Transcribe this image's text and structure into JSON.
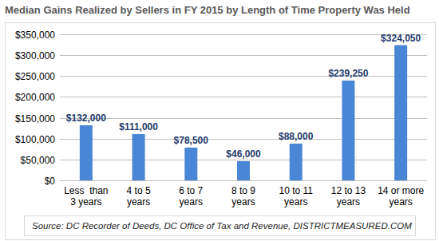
{
  "chart_data": {
    "type": "bar",
    "title": "Median Gains Realized by Sellers in FY 2015 by Length of Time Property Was Held",
    "categories": [
      "Less  than 3 years",
      "4 to 5 years",
      "6 to 7 years",
      "8 to 9 years",
      "10 to 11 years",
      "12 to 13 years",
      "14 or more years"
    ],
    "values": [
      132000,
      111000,
      78500,
      46000,
      88000,
      239250,
      324050
    ],
    "value_labels": [
      "$132,000",
      "$111,000",
      "$78,500",
      "$46,000",
      "$88,000",
      "$239,250",
      "$324,050"
    ],
    "data_labels": true,
    "color": "#4a86d6",
    "ylim": [
      0,
      350000
    ],
    "yticks": [
      {
        "value": 0,
        "label": "$0"
      },
      {
        "value": 50000,
        "label": "$50,000"
      },
      {
        "value": 100000,
        "label": "$100,000"
      },
      {
        "value": 150000,
        "label": "$150,000"
      },
      {
        "value": 200000,
        "label": "$200,000"
      },
      {
        "value": 250000,
        "label": "$250,000"
      },
      {
        "value": 300000,
        "label": "$300,000"
      },
      {
        "value": 350000,
        "label": "$350,000"
      }
    ],
    "grid": true,
    "annotations": [
      "Source: DC Recorder of Deeds, DC Office of Tax and Revenue, DISTRICTMEASURED.COM"
    ]
  }
}
